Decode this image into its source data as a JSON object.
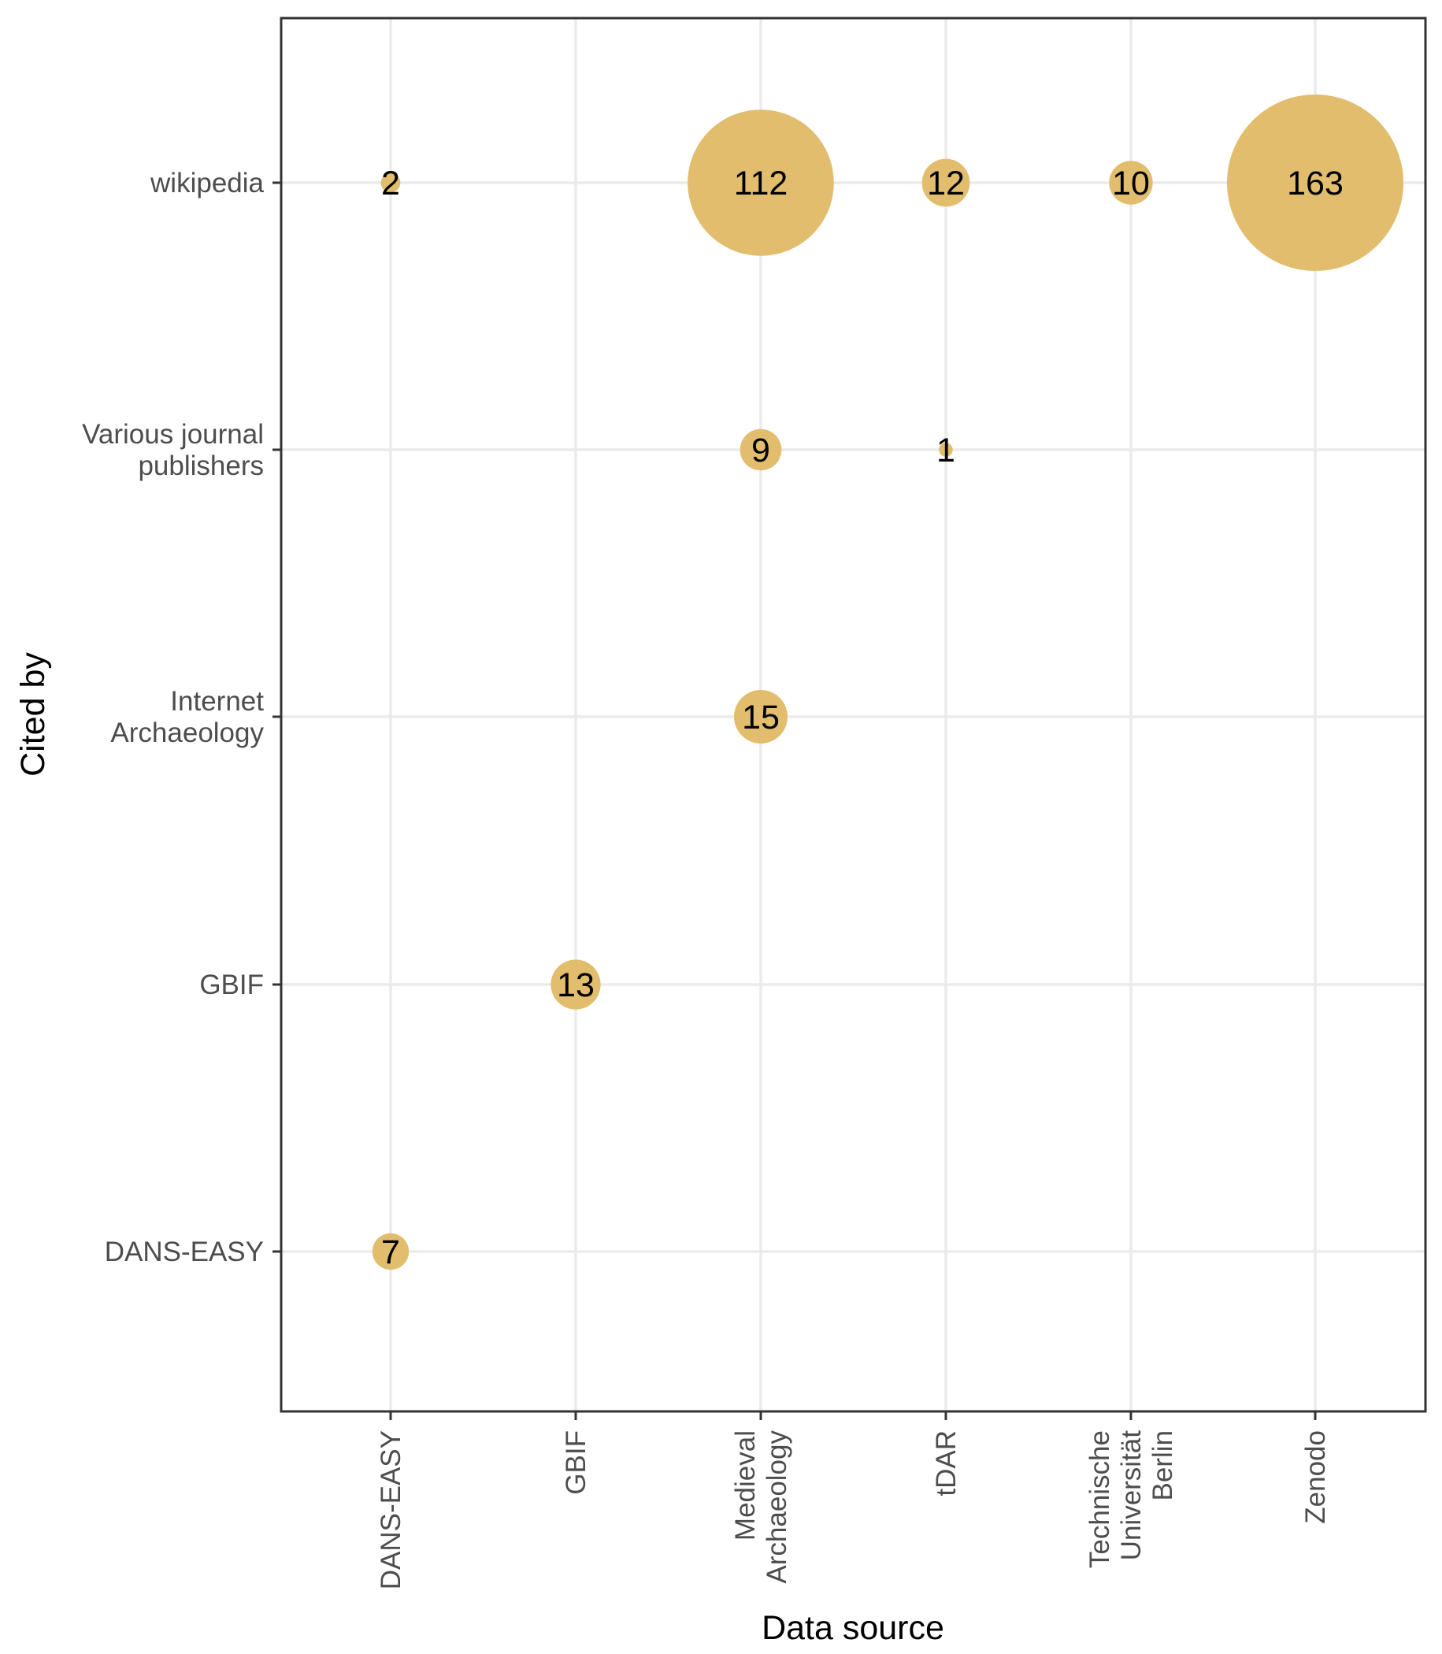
{
  "chart_data": {
    "type": "scatter",
    "xlabel": "Data source",
    "ylabel": "Cited by",
    "x_categories": [
      [
        "DANS-EASY"
      ],
      [
        "GBIF"
      ],
      [
        "Medieval",
        "Archaeology"
      ],
      [
        "tDAR"
      ],
      [
        "Technische",
        "Universität",
        "Berlin"
      ],
      [
        "Zenodo"
      ]
    ],
    "y_categories": [
      [
        "DANS-EASY"
      ],
      [
        "GBIF"
      ],
      [
        "Internet",
        "Archaeology"
      ],
      [
        "Various journal",
        "publishers"
      ],
      [
        "wikipedia"
      ]
    ],
    "points": [
      {
        "x": "DANS-EASY",
        "y": "wikipedia",
        "value": 2,
        "label": "2"
      },
      {
        "x": "Medieval Archaeology",
        "y": "wikipedia",
        "value": 112,
        "label": "112"
      },
      {
        "x": "tDAR",
        "y": "wikipedia",
        "value": 12,
        "label": "12"
      },
      {
        "x": "Technische Universität Berlin",
        "y": "wikipedia",
        "value": 10,
        "label": "10"
      },
      {
        "x": "Zenodo",
        "y": "wikipedia",
        "value": 163,
        "label": "163"
      },
      {
        "x": "Medieval Archaeology",
        "y": "Various journal publishers",
        "value": 9,
        "label": "9"
      },
      {
        "x": "tDAR",
        "y": "Various journal publishers",
        "value": 1,
        "label": "1"
      },
      {
        "x": "Medieval Archaeology",
        "y": "Internet Archaeology",
        "value": 15,
        "label": "15"
      },
      {
        "x": "GBIF",
        "y": "GBIF",
        "value": 13,
        "label": "13"
      },
      {
        "x": "DANS-EASY",
        "y": "DANS-EASY",
        "value": 7,
        "label": "7"
      }
    ],
    "bubble_color": "#E1BD6D",
    "grid": true,
    "legend": "none"
  }
}
